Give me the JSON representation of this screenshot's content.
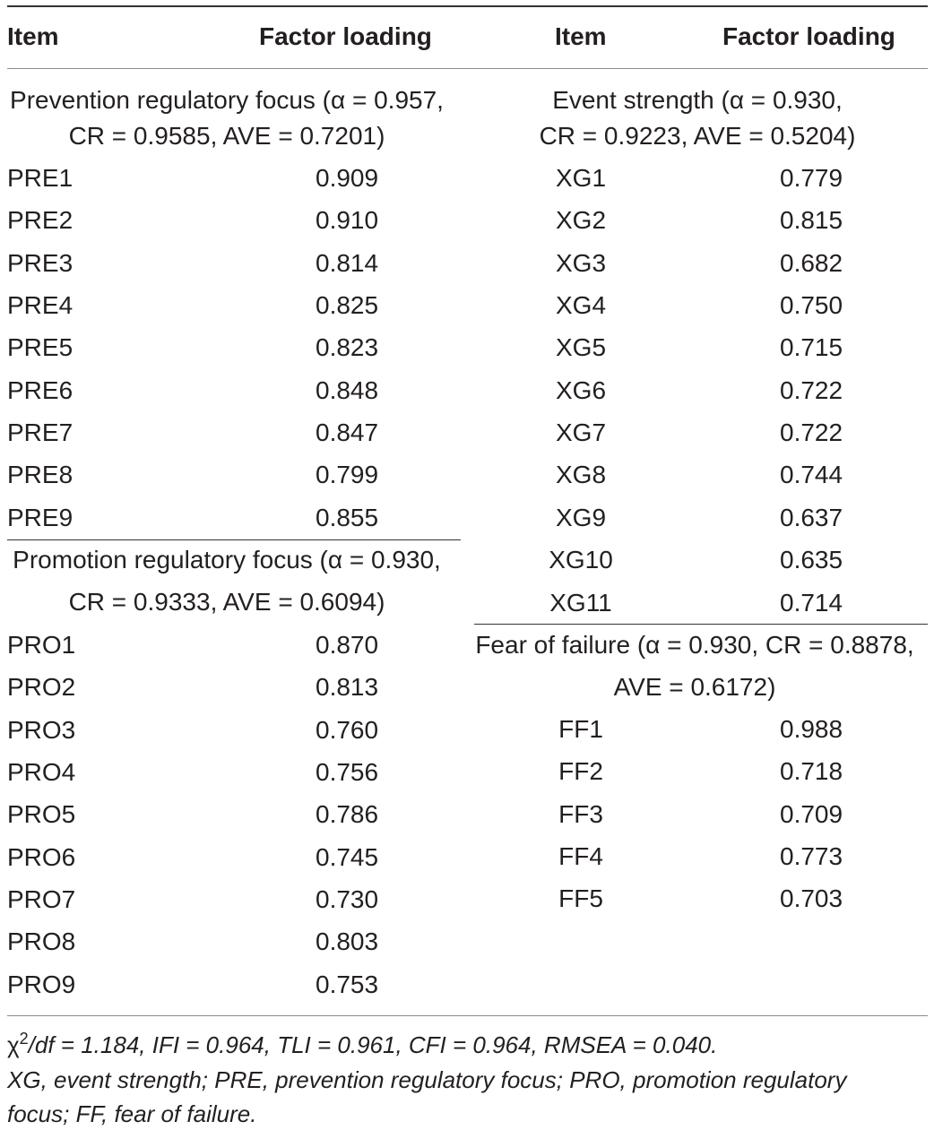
{
  "header": {
    "item_left": "Item",
    "factor_left": "Factor loading",
    "item_right": "Item",
    "factor_right": "Factor loading"
  },
  "left": {
    "prevention": {
      "title_line1": "Prevention regulatory focus (α = 0.957,",
      "title_line2": "CR = 0.9585, AVE = 0.7201)",
      "rows": [
        {
          "item": "PRE1",
          "loading": "0.909"
        },
        {
          "item": "PRE2",
          "loading": "0.910"
        },
        {
          "item": "PRE3",
          "loading": "0.814"
        },
        {
          "item": "PRE4",
          "loading": "0.825"
        },
        {
          "item": "PRE5",
          "loading": "0.823"
        },
        {
          "item": "PRE6",
          "loading": "0.848"
        },
        {
          "item": "PRE7",
          "loading": "0.847"
        },
        {
          "item": "PRE8",
          "loading": "0.799"
        },
        {
          "item": "PRE9",
          "loading": "0.855"
        }
      ]
    },
    "promotion": {
      "title_line1": "Promotion regulatory focus (α = 0.930,",
      "title_line2": "CR = 0.9333, AVE = 0.6094)",
      "rows": [
        {
          "item": "PRO1",
          "loading": "0.870"
        },
        {
          "item": "PRO2",
          "loading": "0.813"
        },
        {
          "item": "PRO3",
          "loading": "0.760"
        },
        {
          "item": "PRO4",
          "loading": "0.756"
        },
        {
          "item": "PRO5",
          "loading": "0.786"
        },
        {
          "item": "PRO6",
          "loading": "0.745"
        },
        {
          "item": "PRO7",
          "loading": "0.730"
        },
        {
          "item": "PRO8",
          "loading": "0.803"
        },
        {
          "item": "PRO9",
          "loading": "0.753"
        }
      ]
    }
  },
  "right": {
    "event": {
      "title_line1": "Event strength (α = 0.930,",
      "title_line2": "CR = 0.9223, AVE = 0.5204)",
      "rows": [
        {
          "item": "XG1",
          "loading": "0.779"
        },
        {
          "item": "XG2",
          "loading": "0.815"
        },
        {
          "item": "XG3",
          "loading": "0.682"
        },
        {
          "item": "XG4",
          "loading": "0.750"
        },
        {
          "item": "XG5",
          "loading": "0.715"
        },
        {
          "item": "XG6",
          "loading": "0.722"
        },
        {
          "item": "XG7",
          "loading": "0.722"
        },
        {
          "item": "XG8",
          "loading": "0.744"
        },
        {
          "item": "XG9",
          "loading": "0.637"
        },
        {
          "item": "XG10",
          "loading": "0.635"
        },
        {
          "item": "XG11",
          "loading": "0.714"
        }
      ]
    },
    "fear": {
      "title_line1": "Fear of failure (α = 0.930, CR = 0.8878,",
      "title_line2": "AVE = 0.6172)",
      "rows": [
        {
          "item": "FF1",
          "loading": "0.988"
        },
        {
          "item": "FF2",
          "loading": "0.718"
        },
        {
          "item": "FF3",
          "loading": "0.709"
        },
        {
          "item": "FF4",
          "loading": "0.773"
        },
        {
          "item": "FF5",
          "loading": "0.703"
        }
      ]
    }
  },
  "footnote": {
    "chi": "χ",
    "sup": "2",
    "fit_rest": "/df = 1.184, IFI = 0.964, TLI = 0.961, CFI = 0.964, RMSEA = 0.040.",
    "abbrev_line1": "XG, event strength; PRE, prevention regulatory focus; PRO, promotion regulatory",
    "abbrev_line2": "focus; FF, fear of failure."
  }
}
